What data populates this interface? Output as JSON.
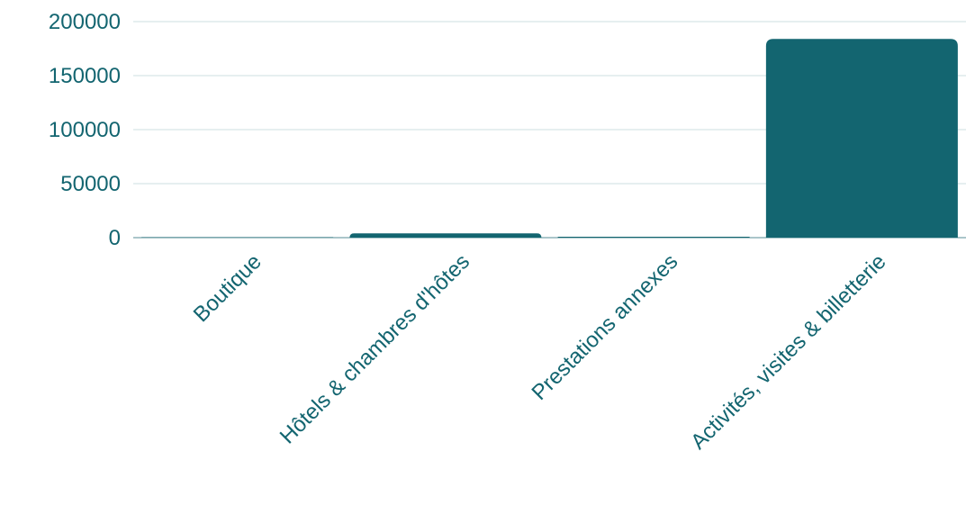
{
  "chart_data": {
    "type": "bar",
    "title": "",
    "xlabel": "",
    "ylabel": "",
    "categories": [
      "Boutique",
      "Hôtels & chambres d'hôtes",
      "Prestations annexes",
      "Activités, visites & billetterie"
    ],
    "values": [
      300,
      4000,
      800,
      184000
    ],
    "ylim": [
      0,
      200000
    ],
    "yticks": [
      0,
      50000,
      100000,
      150000,
      200000
    ],
    "grid": true,
    "legend": "none"
  },
  "colors": {
    "bar": "#136570",
    "text": "#136570",
    "gridline": "#d6e5e7",
    "baseline": "#8fb3b8"
  }
}
